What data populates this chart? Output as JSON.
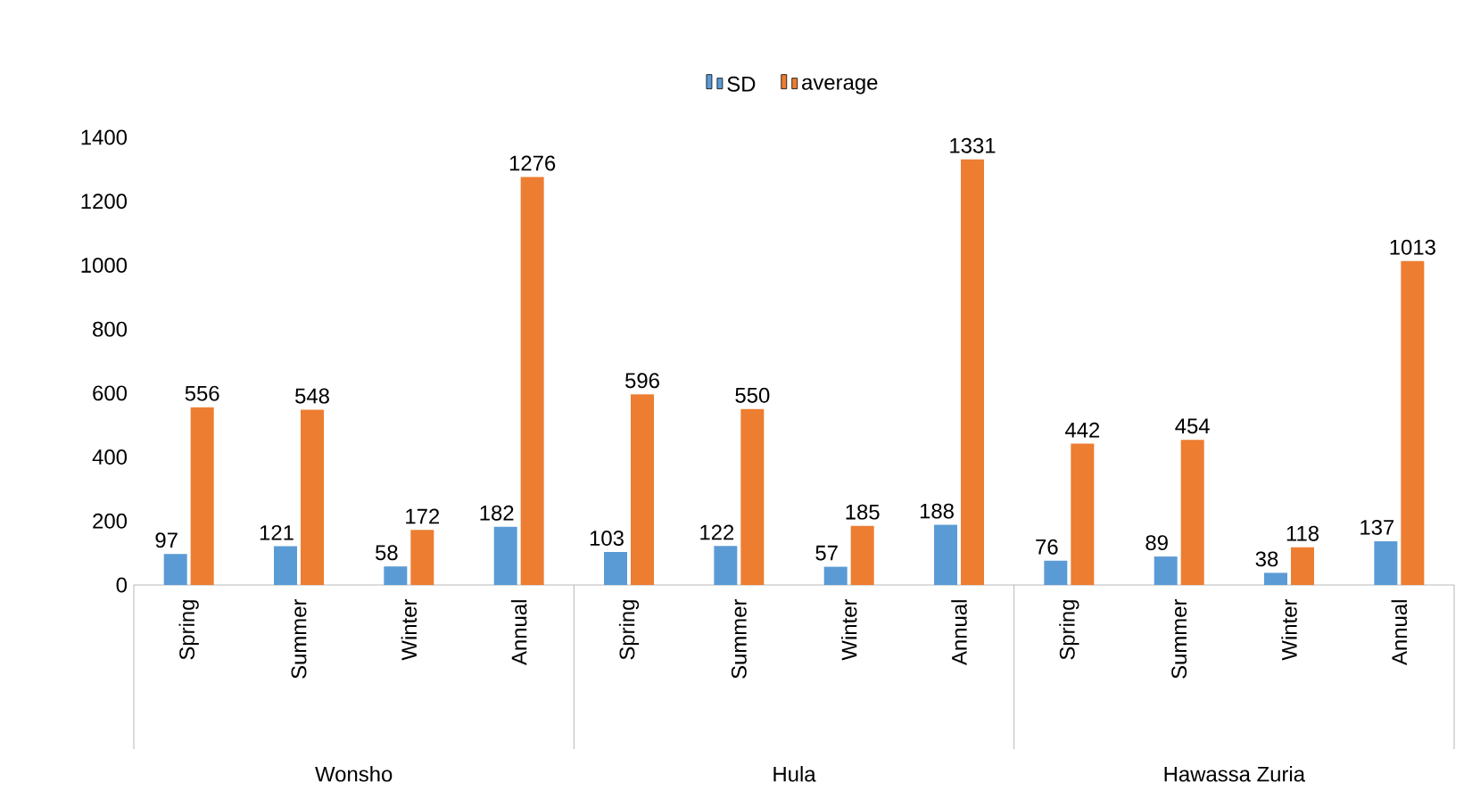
{
  "chart_data": {
    "type": "bar",
    "categories": [
      "Spring",
      "Summer",
      "Winter",
      "Annual",
      "Spring",
      "Summer",
      "Winter",
      "Annual",
      "Spring",
      "Summer",
      "Winter",
      "Annual"
    ],
    "series": [
      {
        "name": "SD",
        "color": "#5b9bd5",
        "values": [
          97,
          121,
          58,
          182,
          103,
          122,
          57,
          188,
          76,
          89,
          38,
          137
        ]
      },
      {
        "name": "average",
        "color": "#ed7d31",
        "values": [
          556,
          548,
          172,
          1276,
          596,
          550,
          185,
          1331,
          442,
          454,
          118,
          1013
        ]
      }
    ],
    "annotations": [
      "Wonsho",
      "Hula",
      "Hawassa Zuria"
    ],
    "ylim": [
      0,
      1400
    ],
    "yticks": [
      0,
      200,
      400,
      600,
      800,
      1000,
      1200,
      1400
    ],
    "legend": "top",
    "data_labels": true
  }
}
